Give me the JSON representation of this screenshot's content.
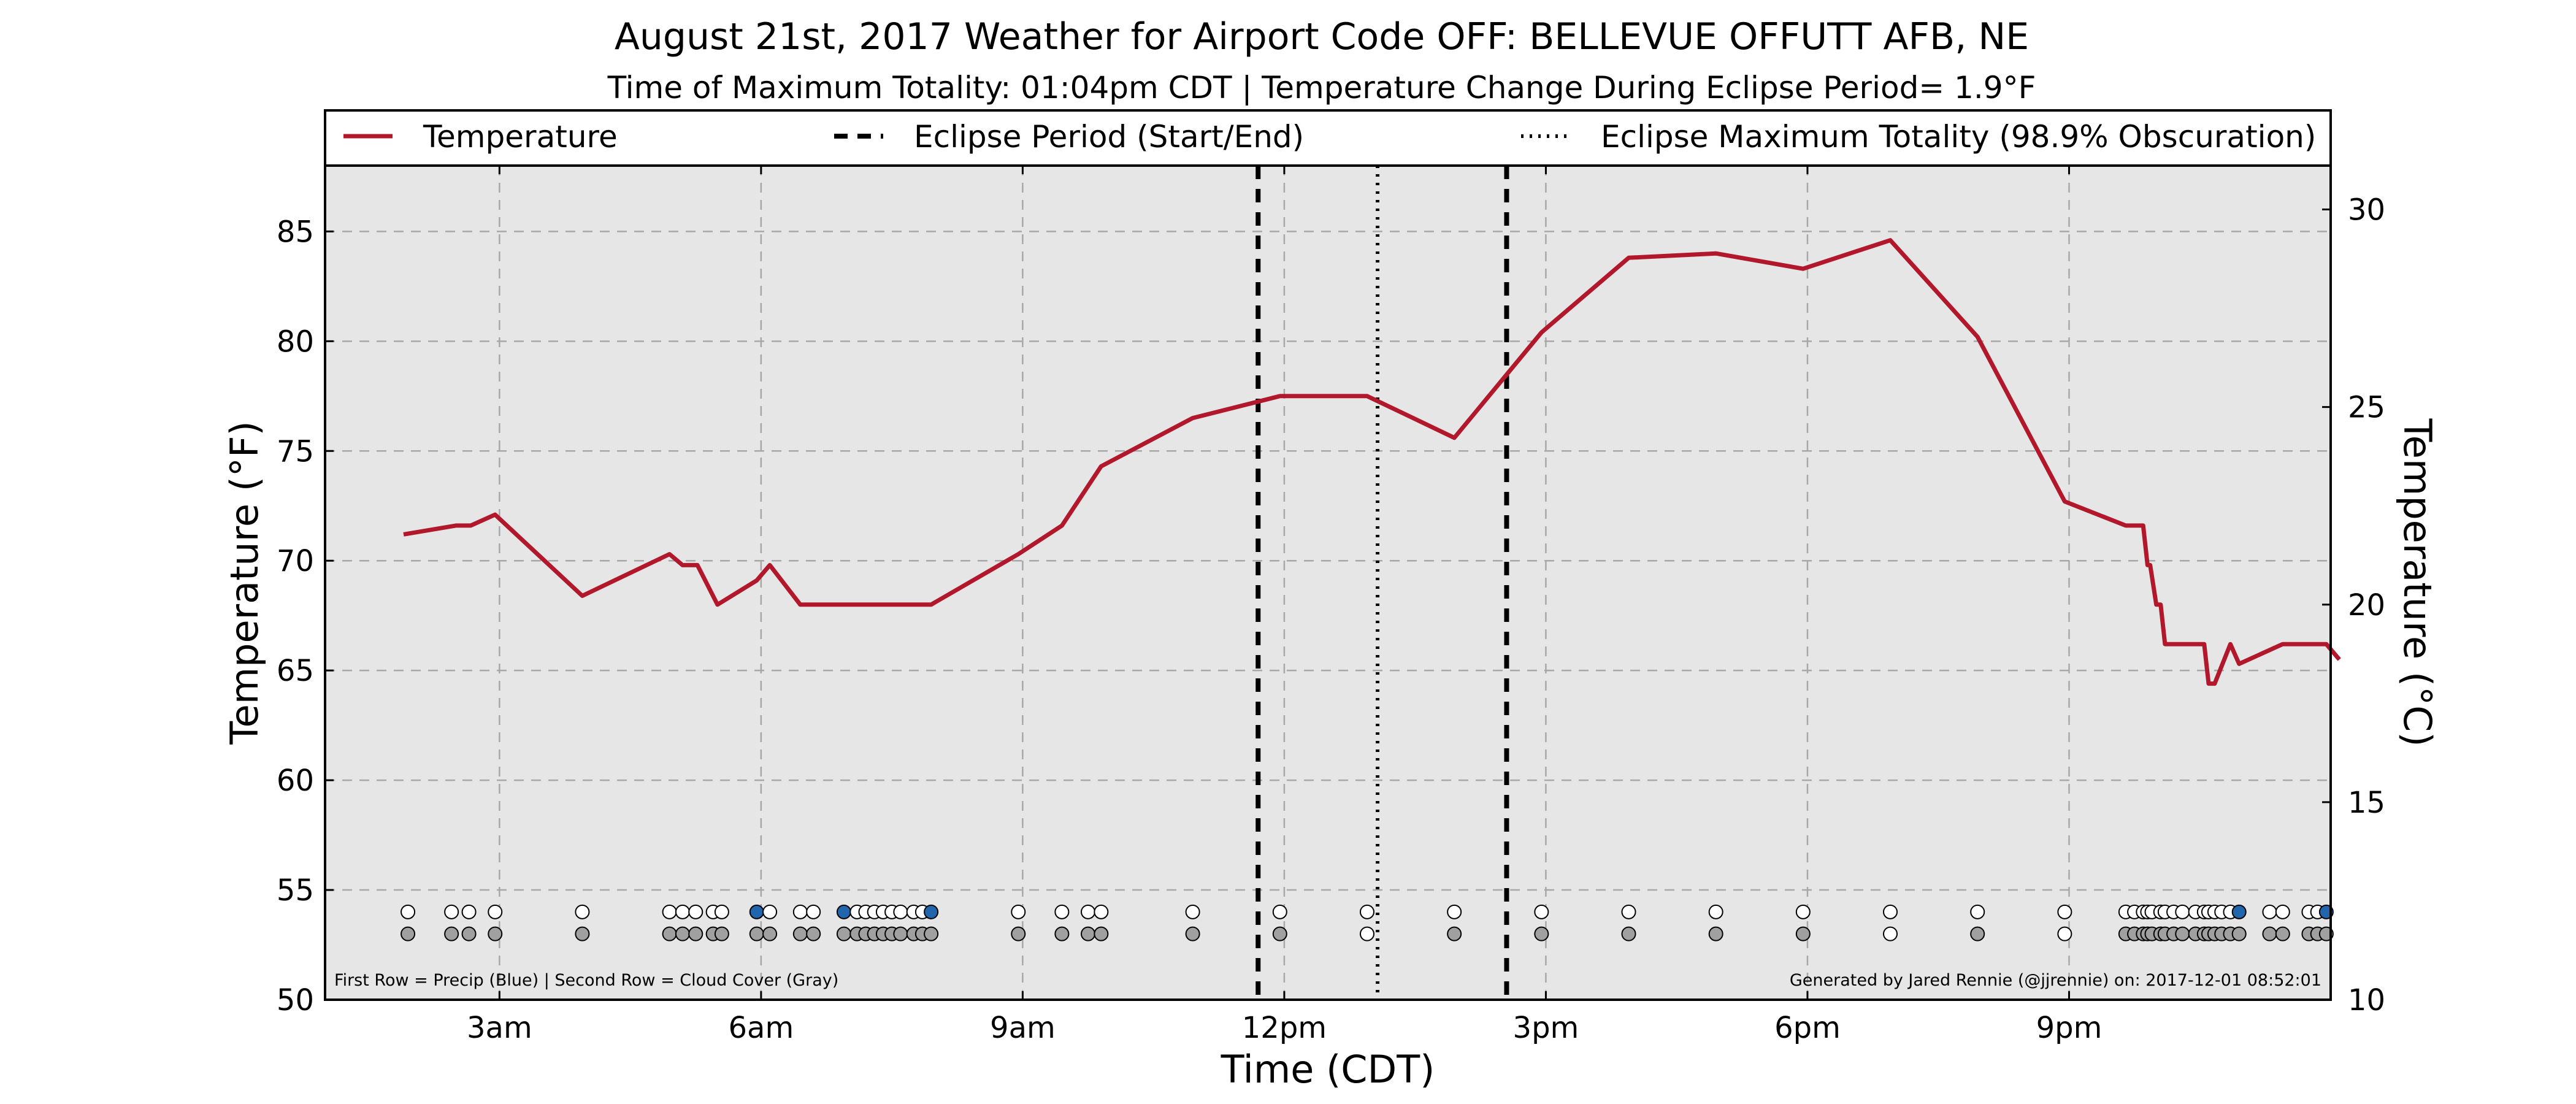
{
  "chart_data": {
    "type": "line",
    "title": "August 21st, 2017 Weather for Airport Code OFF: BELLEVUE OFFUTT AFB, NE",
    "subtitle": "Time of Maximum Totality: 01:04pm CDT | Temperature Change During Eclipse Period= 1.9°F",
    "xlabel": "Time (CDT)",
    "ylabel": "Temperature (°F)",
    "ylabel_right": "Temperature (°C)",
    "xlim": [
      1.0,
      24.0
    ],
    "ylim": [
      50,
      88
    ],
    "ylim_right": [
      10,
      31.11
    ],
    "grid": true,
    "x_ticks": [
      {
        "value": 3,
        "label": "3am"
      },
      {
        "value": 6,
        "label": "6am"
      },
      {
        "value": 9,
        "label": "9am"
      },
      {
        "value": 12,
        "label": "12pm"
      },
      {
        "value": 15,
        "label": "3pm"
      },
      {
        "value": 18,
        "label": "6pm"
      },
      {
        "value": 21,
        "label": "9pm"
      }
    ],
    "y_ticks": [
      50,
      55,
      60,
      65,
      70,
      75,
      80,
      85
    ],
    "y_ticks_right": [
      10,
      15,
      20,
      25,
      30
    ],
    "legend": {
      "placement": "top",
      "entries": [
        {
          "label": "Temperature",
          "style": "solid"
        },
        {
          "label": "Eclipse Period (Start/End)",
          "style": "dashed"
        },
        {
          "label": "Eclipse Maximum Totality (98.9% Obscuration)",
          "style": "dotted"
        }
      ]
    },
    "series": [
      {
        "name": "Temperature",
        "color": "#b2182b",
        "x": [
          1.9,
          2.5,
          2.67,
          2.95,
          3.95,
          4.95,
          5.1,
          5.27,
          5.5,
          5.95,
          6.1,
          6.45,
          6.95,
          7.95,
          8.95,
          9.45,
          9.9,
          10.95,
          11.95,
          12.95,
          13.95,
          14.95,
          15.95,
          16.95,
          17.95,
          18.95,
          19.95,
          20.95,
          21.65,
          21.85,
          21.9,
          21.93,
          22.0,
          22.05,
          22.1,
          22.55,
          22.6,
          22.67,
          22.85,
          22.95,
          23.45,
          23.95,
          24.1
        ],
        "y": [
          71.2,
          71.6,
          71.6,
          72.1,
          68.4,
          70.3,
          69.8,
          69.8,
          68.0,
          69.1,
          69.8,
          68.0,
          68.0,
          68.0,
          70.3,
          71.6,
          74.3,
          76.5,
          77.5,
          77.5,
          75.6,
          80.4,
          83.8,
          84.0,
          83.3,
          84.6,
          80.2,
          72.7,
          71.6,
          71.6,
          69.8,
          69.8,
          68.0,
          68.0,
          66.2,
          66.2,
          64.4,
          64.4,
          66.2,
          65.3,
          66.2,
          66.2,
          65.5
        ]
      }
    ],
    "eclipse": {
      "start": 11.7,
      "end": 14.55,
      "max": 13.07,
      "obscuration": "98.9%"
    },
    "markers": {
      "note": "First Row = Precip (Blue) | Second Row = Cloud Cover (Gray)",
      "precip_y": 54,
      "cloud_y": 53,
      "precip_color": "#2166ac",
      "cloud_color": "#a0a0a0",
      "empty_color": "#ffffff",
      "precip_obs": [
        {
          "x": 1.95,
          "p": 0
        },
        {
          "x": 2.45,
          "p": 0
        },
        {
          "x": 2.65,
          "p": 0
        },
        {
          "x": 2.95,
          "p": 0
        },
        {
          "x": 3.95,
          "p": 0
        },
        {
          "x": 4.95,
          "p": 0
        },
        {
          "x": 5.1,
          "p": 0
        },
        {
          "x": 5.25,
          "p": 0
        },
        {
          "x": 5.45,
          "p": 0
        },
        {
          "x": 5.55,
          "p": 0
        },
        {
          "x": 5.95,
          "p": 1
        },
        {
          "x": 6.1,
          "p": 0
        },
        {
          "x": 6.45,
          "p": 0
        },
        {
          "x": 6.6,
          "p": 0
        },
        {
          "x": 6.95,
          "p": 1
        },
        {
          "x": 7.1,
          "p": 0
        },
        {
          "x": 7.2,
          "p": 0
        },
        {
          "x": 7.3,
          "p": 0
        },
        {
          "x": 7.4,
          "p": 0
        },
        {
          "x": 7.5,
          "p": 0
        },
        {
          "x": 7.6,
          "p": 0
        },
        {
          "x": 7.75,
          "p": 0
        },
        {
          "x": 7.85,
          "p": 0
        },
        {
          "x": 7.95,
          "p": 1
        },
        {
          "x": 8.95,
          "p": 0
        },
        {
          "x": 9.45,
          "p": 0
        },
        {
          "x": 9.75,
          "p": 0
        },
        {
          "x": 9.9,
          "p": 0
        },
        {
          "x": 10.95,
          "p": 0
        },
        {
          "x": 11.95,
          "p": 0
        },
        {
          "x": 12.95,
          "p": 0
        },
        {
          "x": 13.95,
          "p": 0
        },
        {
          "x": 14.95,
          "p": 0
        },
        {
          "x": 15.95,
          "p": 0
        },
        {
          "x": 16.95,
          "p": 0
        },
        {
          "x": 17.95,
          "p": 0
        },
        {
          "x": 18.95,
          "p": 0
        },
        {
          "x": 19.95,
          "p": 0
        },
        {
          "x": 20.95,
          "p": 0
        },
        {
          "x": 21.65,
          "p": 0
        },
        {
          "x": 21.75,
          "p": 0
        },
        {
          "x": 21.85,
          "p": 0
        },
        {
          "x": 21.9,
          "p": 0
        },
        {
          "x": 21.95,
          "p": 0
        },
        {
          "x": 22.05,
          "p": 0
        },
        {
          "x": 22.1,
          "p": 0
        },
        {
          "x": 22.2,
          "p": 0
        },
        {
          "x": 22.3,
          "p": 0
        },
        {
          "x": 22.45,
          "p": 0
        },
        {
          "x": 22.55,
          "p": 0
        },
        {
          "x": 22.6,
          "p": 0
        },
        {
          "x": 22.67,
          "p": 0
        },
        {
          "x": 22.75,
          "p": 0
        },
        {
          "x": 22.85,
          "p": 0
        },
        {
          "x": 22.95,
          "p": 1
        },
        {
          "x": 23.3,
          "p": 0
        },
        {
          "x": 23.45,
          "p": 0
        },
        {
          "x": 23.75,
          "p": 0
        },
        {
          "x": 23.85,
          "p": 0
        },
        {
          "x": 23.95,
          "p": 1
        }
      ],
      "cloud_obs": [
        {
          "x": 1.95,
          "c": 1
        },
        {
          "x": 2.45,
          "c": 1
        },
        {
          "x": 2.65,
          "c": 1
        },
        {
          "x": 2.95,
          "c": 1
        },
        {
          "x": 3.95,
          "c": 1
        },
        {
          "x": 4.95,
          "c": 1
        },
        {
          "x": 5.1,
          "c": 1
        },
        {
          "x": 5.25,
          "c": 1
        },
        {
          "x": 5.45,
          "c": 1
        },
        {
          "x": 5.55,
          "c": 1
        },
        {
          "x": 5.95,
          "c": 1
        },
        {
          "x": 6.1,
          "c": 1
        },
        {
          "x": 6.45,
          "c": 1
        },
        {
          "x": 6.6,
          "c": 1
        },
        {
          "x": 6.95,
          "c": 1
        },
        {
          "x": 7.1,
          "c": 1
        },
        {
          "x": 7.2,
          "c": 1
        },
        {
          "x": 7.3,
          "c": 1
        },
        {
          "x": 7.4,
          "c": 1
        },
        {
          "x": 7.5,
          "c": 1
        },
        {
          "x": 7.6,
          "c": 1
        },
        {
          "x": 7.75,
          "c": 1
        },
        {
          "x": 7.85,
          "c": 1
        },
        {
          "x": 7.95,
          "c": 1
        },
        {
          "x": 8.95,
          "c": 1
        },
        {
          "x": 9.45,
          "c": 1
        },
        {
          "x": 9.75,
          "c": 1
        },
        {
          "x": 9.9,
          "c": 1
        },
        {
          "x": 10.95,
          "c": 1
        },
        {
          "x": 11.95,
          "c": 1
        },
        {
          "x": 12.95,
          "c": 0
        },
        {
          "x": 13.95,
          "c": 1
        },
        {
          "x": 14.95,
          "c": 1
        },
        {
          "x": 15.95,
          "c": 1
        },
        {
          "x": 16.95,
          "c": 1
        },
        {
          "x": 17.95,
          "c": 1
        },
        {
          "x": 18.95,
          "c": 0
        },
        {
          "x": 19.95,
          "c": 1
        },
        {
          "x": 20.95,
          "c": 0
        },
        {
          "x": 21.65,
          "c": 1
        },
        {
          "x": 21.75,
          "c": 1
        },
        {
          "x": 21.85,
          "c": 1
        },
        {
          "x": 21.9,
          "c": 1
        },
        {
          "x": 21.95,
          "c": 1
        },
        {
          "x": 22.05,
          "c": 1
        },
        {
          "x": 22.1,
          "c": 1
        },
        {
          "x": 22.2,
          "c": 1
        },
        {
          "x": 22.3,
          "c": 1
        },
        {
          "x": 22.45,
          "c": 1
        },
        {
          "x": 22.55,
          "c": 1
        },
        {
          "x": 22.6,
          "c": 1
        },
        {
          "x": 22.67,
          "c": 1
        },
        {
          "x": 22.75,
          "c": 1
        },
        {
          "x": 22.85,
          "c": 1
        },
        {
          "x": 22.95,
          "c": 1
        },
        {
          "x": 23.3,
          "c": 1
        },
        {
          "x": 23.45,
          "c": 1
        },
        {
          "x": 23.75,
          "c": 1
        },
        {
          "x": 23.85,
          "c": 1
        },
        {
          "x": 23.95,
          "c": 1
        }
      ]
    },
    "credit": "Generated by Jared Rennie (@jjrennie) on: 2017-12-01 08:52:01"
  }
}
